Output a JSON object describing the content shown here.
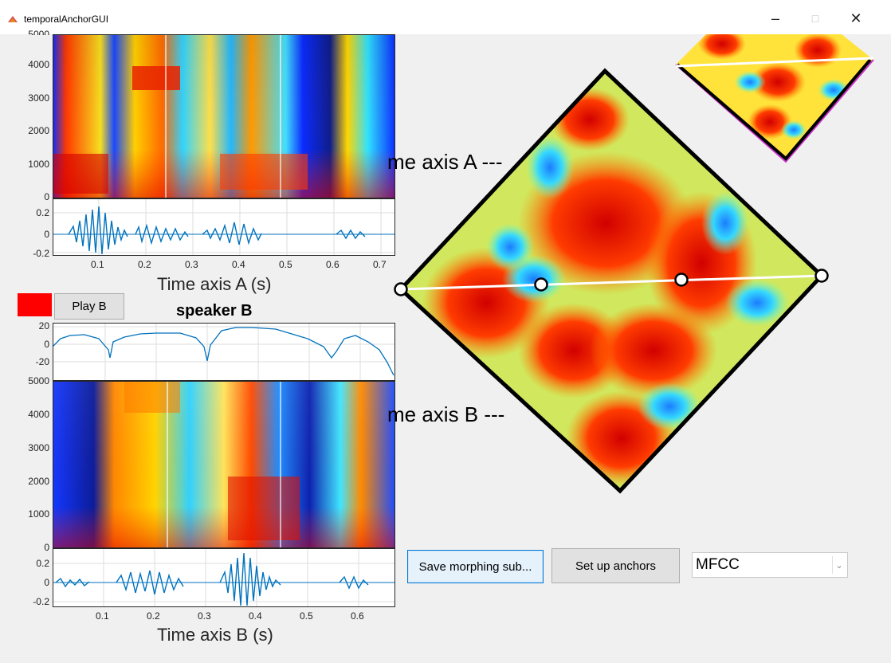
{
  "window": {
    "title": "temporalAnchorGUI",
    "controls": {
      "minimize": "–",
      "maximize": "□",
      "close": "✕"
    }
  },
  "speakerA": {
    "spectrogram_yticks": [
      "0",
      "1000",
      "2000",
      "3000",
      "4000",
      "5000"
    ],
    "waveform_yticks": [
      "0.2",
      "0",
      "-0.2"
    ],
    "xticks": [
      "0.1",
      "0.2",
      "0.3",
      "0.4",
      "0.5",
      "0.6",
      "0.7"
    ],
    "xlabel": "Time axis A (s)"
  },
  "speakerB": {
    "title": "speaker B",
    "play_label": "Play B",
    "indicator_color": "#ff0000",
    "f0_yticks": [
      "20",
      "0",
      "-20"
    ],
    "spectrogram_yticks": [
      "0",
      "1000",
      "2000",
      "3000",
      "4000",
      "5000"
    ],
    "waveform_yticks": [
      "0.2",
      "0",
      "-0.2"
    ],
    "xticks": [
      "0.1",
      "0.2",
      "0.3",
      "0.4",
      "0.5",
      "0.6"
    ],
    "xlabel": "Time axis B (s)"
  },
  "distance_matrix": {
    "label_a": "me axis A ---",
    "label_b": "me axis B ---"
  },
  "toolbar": {
    "save_label": "Save morphing sub...",
    "anchors_label": "Set up anchors",
    "feature_value": "MFCC"
  }
}
